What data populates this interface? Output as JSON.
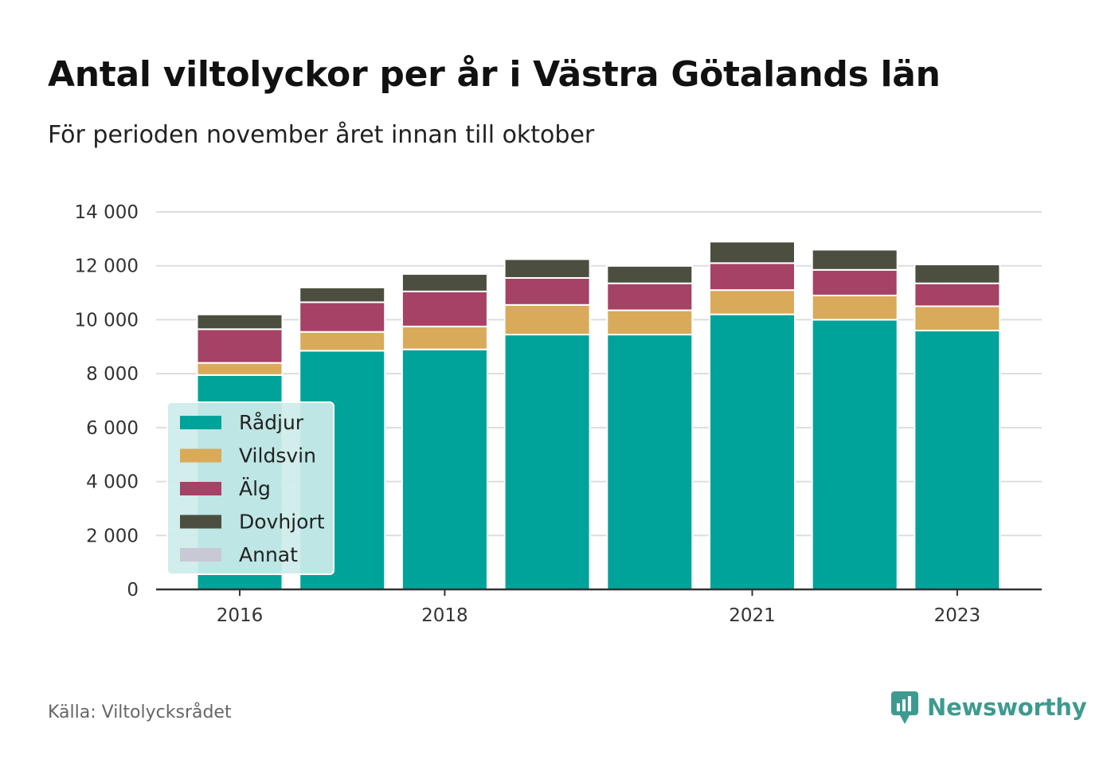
{
  "title": "Antal viltolyckor per år i Västra Götalands län",
  "subtitle": "För perioden november året innan till oktober",
  "source": "Källa: Viltolycksrådet",
  "logo_text": "Newsworthy",
  "logo_icon": "chart-bubble-icon",
  "colors": {
    "Rådjur": "#00a39a",
    "Vildsvin": "#d9aa5a",
    "Älg": "#a54265",
    "Dovhjort": "#4c4f40",
    "Annat": "#c9c9d6",
    "grid": "#dddddd",
    "axis": "#333333",
    "legend_bg": "#cdecea",
    "logo": "#3e9a8f"
  },
  "chart_data": {
    "type": "bar",
    "stacked": true,
    "categories": [
      "2016",
      "2017",
      "2018",
      "2019",
      "2020",
      "2021",
      "2022",
      "2023"
    ],
    "x_tick_labels": [
      "2016",
      "",
      "2018",
      "",
      "",
      "2021",
      "",
      "2023"
    ],
    "y_ticks": [
      0,
      2000,
      4000,
      6000,
      8000,
      10000,
      12000,
      14000
    ],
    "y_tick_labels": [
      "0",
      "2 000",
      "4 000",
      "6 000",
      "8 000",
      "10 000",
      "12 000",
      "14 000"
    ],
    "ylim": [
      0,
      14000
    ],
    "grid": true,
    "legend": {
      "position": "bottom-left",
      "entries": [
        "Rådjur",
        "Vildsvin",
        "Älg",
        "Dovhjort",
        "Annat"
      ]
    },
    "series": [
      {
        "name": "Rådjur",
        "values": [
          7950,
          8850,
          8900,
          9450,
          9450,
          10200,
          10000,
          9600
        ]
      },
      {
        "name": "Vildsvin",
        "values": [
          450,
          700,
          850,
          1100,
          900,
          900,
          900,
          900
        ]
      },
      {
        "name": "Älg",
        "values": [
          1250,
          1100,
          1300,
          1000,
          1000,
          1000,
          950,
          850
        ]
      },
      {
        "name": "Dovhjort",
        "values": [
          550,
          550,
          650,
          700,
          650,
          800,
          750,
          700
        ]
      },
      {
        "name": "Annat",
        "values": [
          20,
          20,
          30,
          30,
          30,
          30,
          30,
          30
        ]
      }
    ]
  }
}
